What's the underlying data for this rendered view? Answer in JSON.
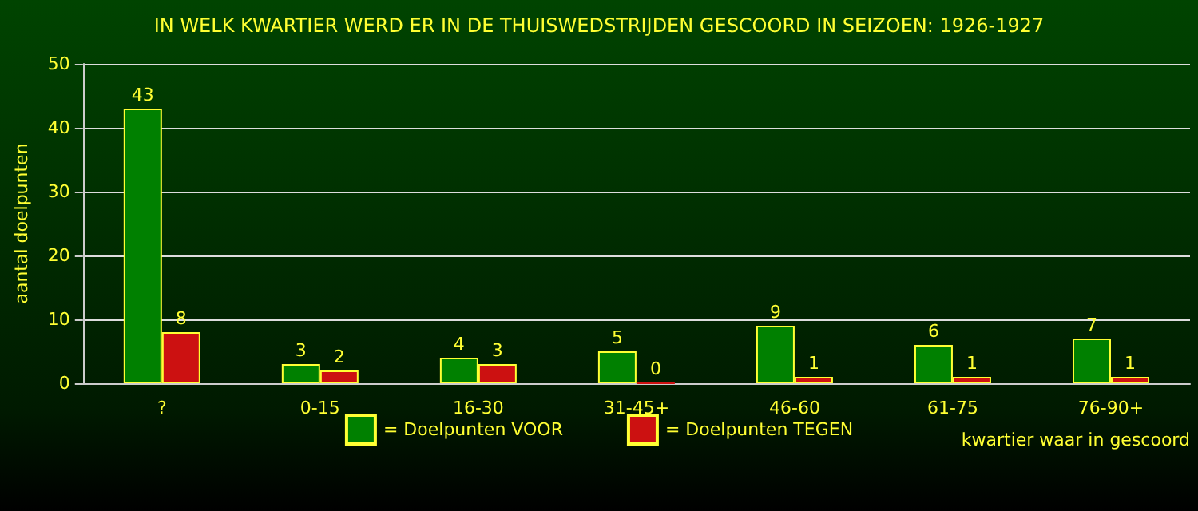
{
  "chart_data": {
    "type": "bar",
    "title": "IN WELK KWARTIER WERD ER IN DE THUISWEDSTRIJDEN GESCOORD IN SEIZOEN: 1926-1927",
    "xlabel": "kwartier waar in gescoord",
    "ylabel": "aantal doelpunten",
    "categories": [
      "?",
      "0-15",
      "16-30",
      "31-45+",
      "46-60",
      "61-75",
      "76-90+"
    ],
    "series": [
      {
        "name": "= Doelpunten VOOR",
        "color": "#008000",
        "values": [
          43,
          3,
          4,
          5,
          9,
          6,
          7
        ]
      },
      {
        "name": "= Doelpunten TEGEN",
        "color": "#cc1111",
        "values": [
          8,
          2,
          3,
          0,
          1,
          1,
          1
        ]
      }
    ],
    "ylim": [
      0,
      50
    ],
    "yticks": [
      0,
      10,
      20,
      30,
      40,
      50
    ],
    "grid": "y",
    "legend": "bottom",
    "data_labels": true
  }
}
